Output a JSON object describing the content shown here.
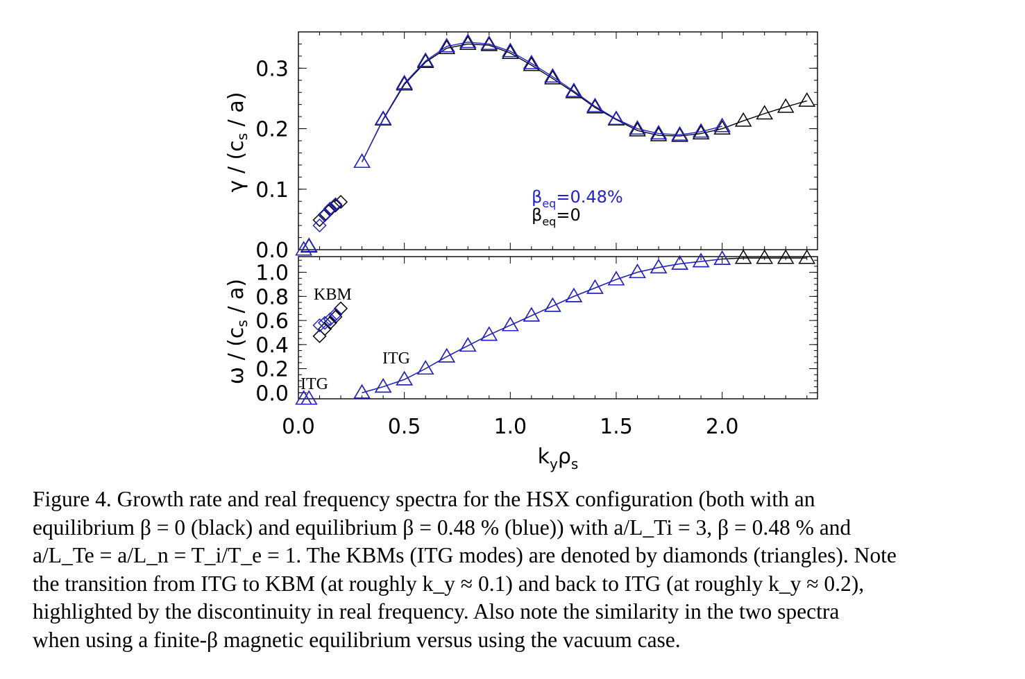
{
  "figure": {
    "colors": {
      "beta_finite": "#2222cc",
      "beta_zero": "#000000"
    },
    "x_axis": {
      "label": "k_y ρ_s",
      "range": [
        0.0,
        2.45
      ],
      "ticks": [
        "0.0",
        "0.5",
        "1.0",
        "1.5",
        "2.0"
      ]
    },
    "top_panel": {
      "ylabel": "γ / (c_s / a)",
      "ylim": [
        0.0,
        0.36
      ],
      "ticks": [
        "0.0",
        "0.1",
        "0.2",
        "0.3"
      ],
      "legend": {
        "line1": "=0.48%",
        "line2": "=0"
      }
    },
    "bottom_panel": {
      "ylabel": "ω / (c_s / a)",
      "ylim": [
        -0.05,
        1.13
      ],
      "ticks": [
        "0.0",
        "0.2",
        "0.4",
        "0.6",
        "0.8",
        "1.0"
      ],
      "annotations": {
        "kbm": "KBM",
        "itg_low": "ITG",
        "itg_high": "ITG"
      }
    },
    "caption": {
      "lines": [
        "Figure 4. Growth rate and real frequency spectra for the HSX configuration (both with an",
        "equilibrium β = 0 (black) and equilibrium β = 0.48 % (blue)) with a/L_Ti = 3, β = 0.48 % and",
        "a/L_Te = a/L_n = T_i/T_e = 1. The KBMs (ITG modes) are denoted by diamonds (triangles). Note",
        "the transition from ITG to KBM (at roughly k_y ≈ 0.1) and back to ITG (at roughly k_y ≈ 0.2),",
        "highlighted by the discontinuity in real frequency. Also note the similarity in the two spectra",
        "when using a finite-β magnetic equilibrium versus using the vacuum case."
      ]
    }
  },
  "chart_data": [
    {
      "type": "scatter",
      "panel": "growth_rate",
      "ylabel": "γ / (c_s / a)",
      "xlabel": "k_y ρ_s",
      "xlim": [
        0.0,
        2.45
      ],
      "ylim": [
        0.0,
        0.36
      ],
      "series": [
        {
          "name": "β_eq=0",
          "marker": "triangle",
          "x": [
            0.025,
            0.05,
            0.3,
            0.4,
            0.5,
            0.6,
            0.7,
            0.8,
            0.9,
            1.0,
            1.1,
            1.2,
            1.3,
            1.4,
            1.5,
            1.6,
            1.7,
            1.8,
            1.9,
            2.0,
            2.1,
            2.2,
            2.3,
            2.4
          ],
          "y": [
            0.0,
            0.005,
            0.145,
            0.215,
            0.273,
            0.31,
            0.333,
            0.34,
            0.338,
            0.325,
            0.305,
            0.283,
            0.26,
            0.235,
            0.215,
            0.197,
            0.189,
            0.188,
            0.192,
            0.2,
            0.213,
            0.225,
            0.236,
            0.246
          ]
        },
        {
          "name": "β_eq=0.48%",
          "marker": "triangle",
          "x": [
            0.025,
            0.05,
            0.3,
            0.4,
            0.5,
            0.6,
            0.7,
            0.8,
            0.9,
            1.0,
            1.1,
            1.2,
            1.3,
            1.4,
            1.5,
            1.6,
            1.7,
            1.8,
            1.9,
            2.0
          ],
          "y": [
            0.0,
            0.006,
            0.145,
            0.216,
            0.275,
            0.312,
            0.336,
            0.343,
            0.34,
            0.328,
            0.308,
            0.286,
            0.262,
            0.237,
            0.216,
            0.2,
            0.192,
            0.19,
            0.195,
            0.204
          ]
        },
        {
          "name": "KBM β_eq=0",
          "marker": "diamond",
          "x": [
            0.1,
            0.125,
            0.15,
            0.175,
            0.2
          ],
          "y": [
            0.049,
            0.058,
            0.066,
            0.073,
            0.079
          ]
        },
        {
          "name": "KBM β_eq=0.48%",
          "marker": "diamond",
          "x": [
            0.1,
            0.125,
            0.15,
            0.175
          ],
          "y": [
            0.04,
            0.057,
            0.068,
            0.075
          ]
        }
      ]
    },
    {
      "type": "scatter",
      "panel": "real_frequency",
      "ylabel": "ω / (c_s / a)",
      "xlabel": "k_y ρ_s",
      "xlim": [
        0.0,
        2.45
      ],
      "ylim": [
        -0.05,
        1.13
      ],
      "series": [
        {
          "name": "β_eq=0",
          "marker": "triangle",
          "x": [
            0.025,
            0.05,
            0.3,
            0.4,
            0.5,
            0.6,
            0.7,
            0.8,
            0.9,
            1.0,
            1.1,
            1.2,
            1.3,
            1.4,
            1.5,
            1.6,
            1.7,
            1.8,
            1.9,
            2.0,
            2.1,
            2.2,
            2.3,
            2.4
          ],
          "y": [
            -0.05,
            -0.05,
            0.0,
            0.05,
            0.11,
            0.2,
            0.3,
            0.39,
            0.48,
            0.56,
            0.64,
            0.72,
            0.8,
            0.87,
            0.94,
            1.0,
            1.04,
            1.07,
            1.09,
            1.11,
            1.13,
            1.14,
            1.15,
            1.16
          ]
        },
        {
          "name": "β_eq=0.48%",
          "marker": "triangle",
          "x": [
            0.025,
            0.05,
            0.3,
            0.4,
            0.5,
            0.6,
            0.7,
            0.8,
            0.9,
            1.0,
            1.1,
            1.2,
            1.3,
            1.4,
            1.5,
            1.6,
            1.7,
            1.8,
            1.9,
            2.0
          ],
          "y": [
            -0.05,
            -0.05,
            0.0,
            0.05,
            0.11,
            0.2,
            0.3,
            0.39,
            0.48,
            0.56,
            0.64,
            0.72,
            0.8,
            0.87,
            0.94,
            1.0,
            1.04,
            1.07,
            1.09,
            1.11
          ]
        },
        {
          "name": "KBM β_eq=0",
          "marker": "diamond",
          "x": [
            0.1,
            0.125,
            0.15,
            0.175,
            0.2
          ],
          "y": [
            0.47,
            0.53,
            0.58,
            0.63,
            0.7
          ]
        },
        {
          "name": "KBM β_eq=0.48%",
          "marker": "diamond",
          "x": [
            0.1,
            0.125,
            0.15,
            0.175
          ],
          "y": [
            0.56,
            0.58,
            0.61,
            0.65
          ]
        }
      ]
    }
  ]
}
